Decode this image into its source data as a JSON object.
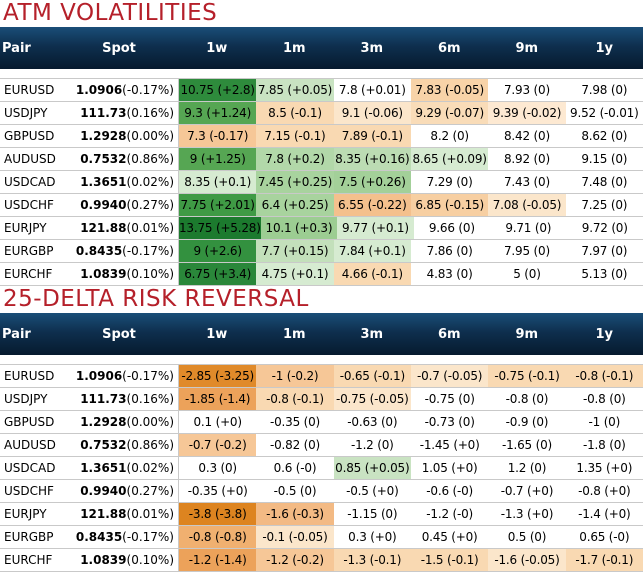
{
  "sections": [
    {
      "title": "ATM VOLATILITIES",
      "headers": [
        "Pair",
        "Spot",
        "1w",
        "1m",
        "3m",
        "6m",
        "9m",
        "1y"
      ],
      "rows": [
        {
          "pair": "EURUSD",
          "spot": "1.0906",
          "chg": "(-0.17%)",
          "cells": [
            "10.75 (+2.8)",
            "7.85 (+0.05)",
            "7.8 (+0.01)",
            "7.83 (-0.05)",
            "7.93 (0)",
            "7.98 (0)"
          ],
          "colors": [
            "#2e8b3c",
            "#c9e3c2",
            "#ffffff",
            "#f8d3a8",
            "#ffffff",
            "#ffffff"
          ]
        },
        {
          "pair": "USDJPY",
          "spot": "111.73",
          "chg": "(0.16%)",
          "cells": [
            "9.3 (+1.24)",
            "8.5 (-0.1)",
            "9.1 (-0.06)",
            "9.29 (-0.07)",
            "9.39 (-0.02)",
            "9.52 (-0.01)"
          ],
          "colors": [
            "#56a653",
            "#f9d9b2",
            "#fbe6cb",
            "#f9dcb8",
            "#fde9d2",
            "#ffffff"
          ]
        },
        {
          "pair": "GBPUSD",
          "spot": "1.2928",
          "chg": "(0.00%)",
          "cells": [
            "7.3 (-0.17)",
            "7.15 (-0.1)",
            "7.89 (-0.1)",
            "8.2 (0)",
            "8.42 (0)",
            "8.62 (0)"
          ],
          "colors": [
            "#f6c797",
            "#f9d9b2",
            "#f9d9b2",
            "#ffffff",
            "#ffffff",
            "#ffffff"
          ]
        },
        {
          "pair": "AUDUSD",
          "spot": "0.7532",
          "chg": "(0.86%)",
          "cells": [
            "9 (+1.25)",
            "7.8 (+0.2)",
            "8.35 (+0.16)",
            "8.65 (+0.09)",
            "8.92 (0)",
            "9.15 (0)"
          ],
          "colors": [
            "#56a653",
            "#b2d8a9",
            "#bcdcb3",
            "#d6ebd1",
            "#ffffff",
            "#ffffff"
          ]
        },
        {
          "pair": "USDCAD",
          "spot": "1.3651",
          "chg": "(0.02%)",
          "cells": [
            "8.35 (+0.1)",
            "7.45 (+0.25)",
            "7.5 (+0.26)",
            "7.29 (0)",
            "7.43 (0)",
            "7.48 (0)"
          ],
          "colors": [
            "#d6ebd1",
            "#a8d39e",
            "#a3d099",
            "#ffffff",
            "#ffffff",
            "#ffffff"
          ]
        },
        {
          "pair": "USDCHF",
          "spot": "0.9940",
          "chg": "(0.27%)",
          "cells": [
            "7.75 (+2.01)",
            "6.4 (+0.25)",
            "6.55 (-0.22)",
            "6.85 (-0.15)",
            "7.08 (-0.05)",
            "7.25 (0)"
          ],
          "colors": [
            "#3f9a45",
            "#a8d39e",
            "#f4c08d",
            "#f7cfa2",
            "#fbe6cb",
            "#ffffff"
          ]
        },
        {
          "pair": "EURJPY",
          "spot": "121.88",
          "chg": "(0.01%)",
          "cells": [
            "13.75 (+5.28)",
            "10.1 (+0.3)",
            "9.77 (+0.1)",
            "9.66 (0)",
            "9.71 (0)",
            "9.72 (0)"
          ],
          "colors": [
            "#1c7a2e",
            "#9ccd92",
            "#d6ebd1",
            "#ffffff",
            "#ffffff",
            "#ffffff"
          ]
        },
        {
          "pair": "EURGBP",
          "spot": "0.8435",
          "chg": "(-0.17%)",
          "cells": [
            "9 (+2.6)",
            "7.7 (+0.15)",
            "7.84 (+0.1)",
            "7.86 (0)",
            "7.95 (0)",
            "7.97 (0)"
          ],
          "colors": [
            "#33913f",
            "#c3e0bb",
            "#d6ebd1",
            "#ffffff",
            "#ffffff",
            "#ffffff"
          ]
        },
        {
          "pair": "EURCHF",
          "spot": "1.0839",
          "chg": "(0.10%)",
          "cells": [
            "6.75 (+3.4)",
            "4.75 (+0.1)",
            "4.66 (-0.1)",
            "4.83 (0)",
            "5 (0)",
            "5.13 (0)"
          ],
          "colors": [
            "#2a873a",
            "#d6ebd1",
            "#f9d9b2",
            "#ffffff",
            "#ffffff",
            "#ffffff"
          ]
        }
      ]
    },
    {
      "title": "25-DELTA RISK REVERSAL",
      "headers": [
        "Pair",
        "Spot",
        "1w",
        "1m",
        "3m",
        "6m",
        "9m",
        "1y"
      ],
      "rows": [
        {
          "pair": "EURUSD",
          "spot": "1.0906",
          "chg": "(-0.17%)",
          "cells": [
            "-2.85 (-3.25)",
            "-1 (-0.2)",
            "-0.65 (-0.1)",
            "-0.7 (-0.05)",
            "-0.75 (-0.1)",
            "-0.8 (-0.1)"
          ],
          "colors": [
            "#e08a2a",
            "#f6c797",
            "#f9d9b2",
            "#fbe6cb",
            "#f9d9b2",
            "#f9d9b2"
          ]
        },
        {
          "pair": "USDJPY",
          "spot": "111.73",
          "chg": "(0.16%)",
          "cells": [
            "-1.85 (-1.4)",
            "-0.8 (-0.1)",
            "-0.75 (-0.05)",
            "-0.75 (0)",
            "-0.8 (0)",
            "-0.8 (0)"
          ],
          "colors": [
            "#eca25a",
            "#f9d9b2",
            "#fbe6cb",
            "#ffffff",
            "#ffffff",
            "#ffffff"
          ]
        },
        {
          "pair": "GBPUSD",
          "spot": "1.2928",
          "chg": "(0.00%)",
          "cells": [
            "0.1 (+0)",
            "-0.35 (0)",
            "-0.63 (0)",
            "-0.73 (0)",
            "-0.9 (0)",
            "-1 (0)"
          ],
          "colors": [
            "#ffffff",
            "#ffffff",
            "#ffffff",
            "#ffffff",
            "#ffffff",
            "#ffffff"
          ]
        },
        {
          "pair": "AUDUSD",
          "spot": "0.7532",
          "chg": "(0.86%)",
          "cells": [
            "-0.7 (-0.2)",
            "-0.82 (0)",
            "-1.2 (0)",
            "-1.45 (+0)",
            "-1.65 (0)",
            "-1.8 (0)"
          ],
          "colors": [
            "#f6c797",
            "#ffffff",
            "#ffffff",
            "#ffffff",
            "#ffffff",
            "#ffffff"
          ]
        },
        {
          "pair": "USDCAD",
          "spot": "1.3651",
          "chg": "(0.02%)",
          "cells": [
            "0.3 (0)",
            "0.6 (-0)",
            "0.85 (+0.05)",
            "1.05 (+0)",
            "1.2 (0)",
            "1.35 (+0)"
          ],
          "colors": [
            "#ffffff",
            "#ffffff",
            "#c9e3c2",
            "#ffffff",
            "#ffffff",
            "#ffffff"
          ]
        },
        {
          "pair": "USDCHF",
          "spot": "0.9940",
          "chg": "(0.27%)",
          "cells": [
            "-0.35 (+0)",
            "-0.5 (0)",
            "-0.5 (+0)",
            "-0.6 (-0)",
            "-0.7 (+0)",
            "-0.8 (+0)"
          ],
          "colors": [
            "#ffffff",
            "#ffffff",
            "#ffffff",
            "#ffffff",
            "#ffffff",
            "#ffffff"
          ]
        },
        {
          "pair": "EURJPY",
          "spot": "121.88",
          "chg": "(0.01%)",
          "cells": [
            "-3.8 (-3.8)",
            "-1.6 (-0.3)",
            "-1.15 (0)",
            "-1.2 (-0)",
            "-1.3 (+0)",
            "-1.4 (+0)"
          ],
          "colors": [
            "#dd8420",
            "#f3ba84",
            "#ffffff",
            "#ffffff",
            "#ffffff",
            "#ffffff"
          ]
        },
        {
          "pair": "EURGBP",
          "spot": "0.8435",
          "chg": "(-0.17%)",
          "cells": [
            "-0.8 (-0.8)",
            "-0.1 (-0.05)",
            "0.3 (+0)",
            "0.45 (+0)",
            "0.5 (0)",
            "0.65 (-0)"
          ],
          "colors": [
            "#f0b070",
            "#fbe6cb",
            "#ffffff",
            "#ffffff",
            "#ffffff",
            "#ffffff"
          ]
        },
        {
          "pair": "EURCHF",
          "spot": "1.0839",
          "chg": "(0.10%)",
          "cells": [
            "-1.2 (-1.4)",
            "-1.2 (-0.2)",
            "-1.3 (-0.1)",
            "-1.5 (-0.1)",
            "-1.6 (-0.05)",
            "-1.7 (-0.1)"
          ],
          "colors": [
            "#eca25a",
            "#f6c797",
            "#f9d9b2",
            "#f9d9b2",
            "#fbe6cb",
            "#f9d9b2"
          ]
        }
      ]
    }
  ]
}
